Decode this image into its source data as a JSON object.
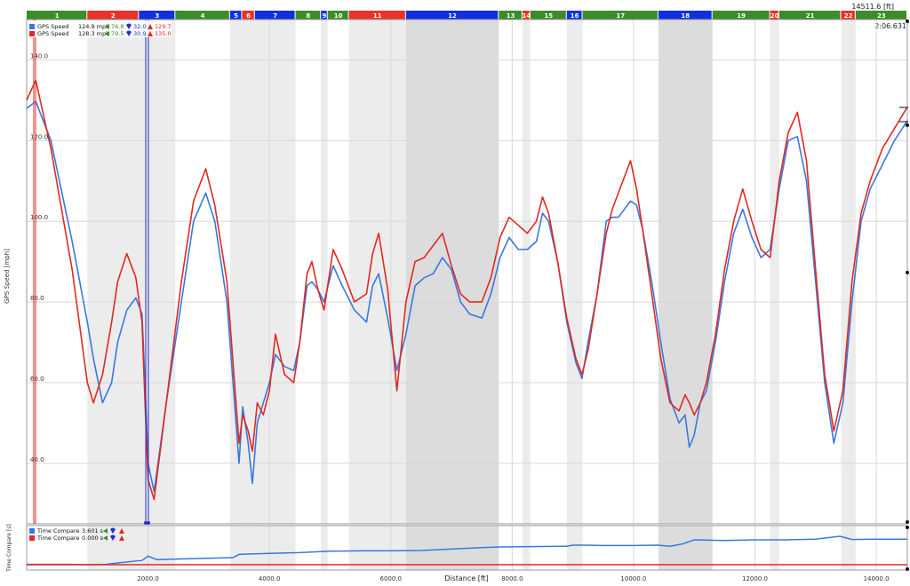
{
  "corners": {
    "time": "2:06.631",
    "distance": "14511.6 [ft]"
  },
  "colors": {
    "blue": "#3a78e0",
    "red": "#e02a20",
    "green": "#3f8a2a",
    "segment_blue": "#1030e0",
    "segment_red": "#e83228",
    "segment_green": "#3c8c2a",
    "shade_light": "#ececec",
    "shade_dark": "#dcdcdc"
  },
  "segments": [
    {
      "label": "1",
      "type": "green",
      "start": 0,
      "end": 1000
    },
    {
      "label": "2",
      "type": "red",
      "start": 1000,
      "end": 1850
    },
    {
      "label": "3",
      "type": "blue",
      "start": 1850,
      "end": 2450
    },
    {
      "label": "4",
      "type": "green",
      "start": 2450,
      "end": 3350
    },
    {
      "label": "5",
      "type": "blue",
      "start": 3350,
      "end": 3550
    },
    {
      "label": "6",
      "type": "red",
      "start": 3550,
      "end": 3760
    },
    {
      "label": "7",
      "type": "blue",
      "start": 3760,
      "end": 4430
    },
    {
      "label": "8",
      "type": "green",
      "start": 4430,
      "end": 4850
    },
    {
      "label": "9",
      "type": "blue",
      "start": 4850,
      "end": 4960
    },
    {
      "label": "10",
      "type": "green",
      "start": 4960,
      "end": 5310
    },
    {
      "label": "11",
      "type": "red",
      "start": 5310,
      "end": 6250
    },
    {
      "label": "12",
      "type": "blue",
      "start": 6250,
      "end": 7780
    },
    {
      "label": "13",
      "type": "green",
      "start": 7780,
      "end": 8170
    },
    {
      "label": "14",
      "type": "red",
      "start": 8170,
      "end": 8300
    },
    {
      "label": "15",
      "type": "green",
      "start": 8300,
      "end": 8900
    },
    {
      "label": "16",
      "type": "blue",
      "start": 8900,
      "end": 9160
    },
    {
      "label": "17",
      "type": "green",
      "start": 9160,
      "end": 10410
    },
    {
      "label": "18",
      "type": "blue",
      "start": 10410,
      "end": 11300
    },
    {
      "label": "19",
      "type": "green",
      "start": 11300,
      "end": 12250
    },
    {
      "label": "20",
      "type": "red",
      "start": 12250,
      "end": 12400
    },
    {
      "label": "21",
      "type": "green",
      "start": 12400,
      "end": 13420
    },
    {
      "label": "22",
      "type": "red",
      "start": 13420,
      "end": 13660
    },
    {
      "label": "23",
      "type": "green",
      "start": 13660,
      "end": 14511.6
    }
  ],
  "chart_data": [
    {
      "type": "line",
      "ylabel": "GPS Speed [mph]",
      "xlim": [
        0,
        14511.6
      ],
      "ylim": [
        25,
        150
      ],
      "y_ticks": [
        "40.0",
        "60.0",
        "80.0",
        "100.0",
        "120.0",
        "140.0"
      ],
      "grid": true,
      "legend": [
        {
          "name": "GPS Speed",
          "value": "124.9",
          "unit": "mph",
          "min_a": "76.8",
          "min_b": "32.0",
          "max": "129.7"
        },
        {
          "name": "GPS Speed",
          "value": "128.3",
          "unit": "mph",
          "min_a": "79.5",
          "min_b": "30.9",
          "max": "135.0"
        }
      ],
      "series": [
        {
          "x": [
            0,
            150,
            400,
            750,
            1000,
            1100,
            1250,
            1400,
            1500,
            1650,
            1800,
            1900,
            1950,
            2000,
            2100,
            2300,
            2550,
            2750,
            2950,
            3100,
            3300,
            3450,
            3500,
            3560,
            3650,
            3720,
            3800,
            3900,
            4000,
            4100,
            4250,
            4400,
            4500,
            4620,
            4700,
            4800,
            4900,
            5050,
            5200,
            5400,
            5600,
            5700,
            5800,
            5950,
            6100,
            6250,
            6400,
            6550,
            6700,
            6850,
            7000,
            7150,
            7300,
            7500,
            7650,
            7800,
            7950,
            8100,
            8250,
            8400,
            8500,
            8600,
            8750,
            8900,
            9050,
            9150,
            9250,
            9400,
            9550,
            9650,
            9750,
            9950,
            10050,
            10150,
            10300,
            10450,
            10600,
            10750,
            10850,
            10920,
            11000,
            11100,
            11200,
            11350,
            11500,
            11650,
            11800,
            11950,
            12100,
            12250,
            12400,
            12550,
            12700,
            12850,
            13000,
            13150,
            13300,
            13450,
            13600,
            13750,
            13900,
            14100,
            14300,
            14511
          ],
          "values": [
            128,
            129.7,
            120,
            95,
            75,
            66,
            55,
            60,
            70,
            78,
            81,
            77,
            60,
            40,
            33,
            55,
            80,
            100,
            107,
            100,
            80,
            50,
            40,
            54,
            45,
            35,
            50,
            55,
            60,
            67,
            64,
            63,
            70,
            84,
            85,
            83,
            80,
            89,
            84,
            78,
            75,
            84,
            87,
            76,
            63,
            72,
            84,
            86,
            87,
            91,
            88,
            80,
            77,
            76,
            82,
            91,
            96,
            93,
            93,
            95,
            102,
            100,
            90,
            75,
            65,
            61,
            70,
            82,
            100,
            101,
            101,
            105,
            104,
            98,
            85,
            70,
            56,
            50,
            52,
            44,
            47,
            55,
            58,
            70,
            85,
            97,
            103,
            96,
            91,
            93,
            108,
            120,
            121,
            110,
            85,
            60,
            45,
            55,
            80,
            100,
            108,
            114,
            120,
            124.9
          ]
        },
        {
          "x": [
            0,
            150,
            400,
            750,
            1000,
            1100,
            1250,
            1400,
            1500,
            1650,
            1800,
            1900,
            1950,
            2000,
            2100,
            2300,
            2550,
            2750,
            2950,
            3100,
            3300,
            3450,
            3500,
            3560,
            3650,
            3720,
            3800,
            3900,
            4000,
            4100,
            4250,
            4400,
            4500,
            4620,
            4700,
            4800,
            4900,
            5050,
            5200,
            5400,
            5600,
            5700,
            5800,
            5950,
            6100,
            6250,
            6400,
            6550,
            6700,
            6850,
            7000,
            7150,
            7300,
            7500,
            7650,
            7800,
            7950,
            8100,
            8250,
            8400,
            8500,
            8600,
            8750,
            8900,
            9050,
            9150,
            9250,
            9400,
            9550,
            9650,
            9750,
            9950,
            10050,
            10150,
            10300,
            10450,
            10600,
            10750,
            10850,
            10920,
            11000,
            11100,
            11200,
            11350,
            11500,
            11650,
            11800,
            11950,
            12100,
            12250,
            12400,
            12550,
            12700,
            12850,
            13000,
            13150,
            13300,
            13450,
            13600,
            13750,
            13900,
            14100,
            14300,
            14511
          ],
          "values": [
            130,
            135,
            118,
            88,
            60,
            55,
            62,
            75,
            85,
            92,
            86,
            75,
            55,
            36,
            31,
            55,
            85,
            105,
            113,
            104,
            85,
            55,
            45,
            52,
            48,
            43,
            55,
            52,
            58,
            72,
            62,
            60,
            70,
            87,
            90,
            83,
            78,
            93,
            88,
            80,
            82,
            92,
            97,
            83,
            58,
            80,
            90,
            91,
            94,
            97,
            89,
            82,
            80,
            80,
            86,
            96,
            101,
            99,
            97,
            100,
            106,
            102,
            90,
            76,
            66,
            62,
            68,
            82,
            97,
            103,
            107,
            115,
            108,
            98,
            82,
            66,
            55,
            53,
            57,
            55,
            52,
            55,
            60,
            72,
            88,
            100,
            108,
            100,
            93,
            91,
            110,
            122,
            127,
            115,
            88,
            62,
            48,
            58,
            85,
            102,
            110,
            118,
            123,
            128.3
          ]
        }
      ]
    },
    {
      "type": "line",
      "ylabel": "Time Compare [s]",
      "xlabel": "Distance [ft]",
      "xlim": [
        0,
        14511.6
      ],
      "ylim": [
        0,
        5
      ],
      "x_ticks": [
        "2000.0",
        "4000.0",
        "6000.0",
        "8000.0",
        "10000.0",
        "12000.0",
        "14000.0"
      ],
      "x_tick_values": [
        2000,
        4000,
        6000,
        8000,
        10000,
        12000,
        14000
      ],
      "legend": [
        {
          "name": "Time Compare",
          "value": "3.601",
          "unit": "s"
        },
        {
          "name": "Time Compare",
          "value": "0.000",
          "unit": "s"
        }
      ],
      "series": [
        {
          "x": [
            0,
            700,
            1000,
            1300,
            1600,
            1900,
            2000,
            2150,
            2500,
            3000,
            3400,
            3500,
            3650,
            4000,
            4500,
            5000,
            5500,
            6000,
            6500,
            7000,
            7500,
            7800,
            8300,
            8900,
            9000,
            9200,
            9500,
            10000,
            10400,
            10600,
            10800,
            11000,
            11500,
            12000,
            12500,
            13000,
            13400,
            13600,
            14000,
            14511
          ],
          "values": [
            0.05,
            0.05,
            0.0,
            0.05,
            0.35,
            0.6,
            1.2,
            0.7,
            0.8,
            0.9,
            1.0,
            1.45,
            1.5,
            1.6,
            1.7,
            1.9,
            1.95,
            1.95,
            2.0,
            2.2,
            2.4,
            2.5,
            2.55,
            2.6,
            2.75,
            2.75,
            2.7,
            2.7,
            2.75,
            2.6,
            2.9,
            3.5,
            3.4,
            3.5,
            3.5,
            3.6,
            4.0,
            3.55,
            3.6,
            3.601
          ]
        },
        {
          "x": [
            0,
            14511
          ],
          "values": [
            0,
            0
          ]
        }
      ]
    }
  ]
}
